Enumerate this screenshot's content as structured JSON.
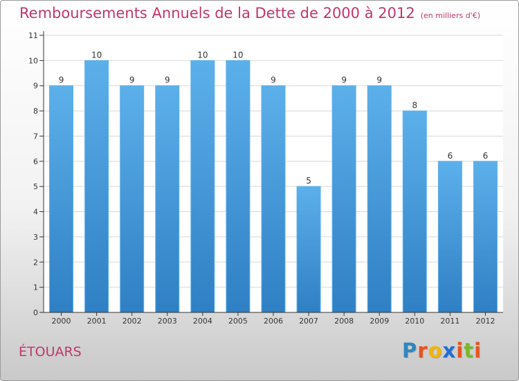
{
  "header": {
    "title": "Remboursements Annuels de la Dette de 2000 à 2012",
    "subtitle": "(en milliers d'€)"
  },
  "footer": {
    "commune": "ÉTOUARS",
    "brand_letters": [
      "P",
      "r",
      "o",
      "x",
      "i",
      "t",
      "i"
    ],
    "brand_colors": [
      "#2e86c1",
      "#e8531d",
      "#f4b400",
      "#1f6fd6",
      "#e8531d",
      "#78b928",
      "#e8531d"
    ]
  },
  "colors": {
    "bar": "#4a9fe0",
    "bar_light": "#5cb0ea",
    "bar_dark": "#2f7fc4",
    "grid": "#d8d8d8",
    "axis": "#333333",
    "text": "#333333"
  },
  "chart_data": {
    "type": "bar",
    "categories": [
      "2000",
      "2001",
      "2002",
      "2003",
      "2004",
      "2005",
      "2006",
      "2007",
      "2008",
      "2009",
      "2010",
      "2011",
      "2012"
    ],
    "values": [
      9,
      10,
      9,
      9,
      10,
      10,
      9,
      5,
      9,
      9,
      8,
      6,
      6
    ],
    "data_labels": [
      "9",
      "10",
      "9",
      "9",
      "10",
      "10",
      "9",
      "5",
      "9",
      "9",
      "8",
      "6",
      "6"
    ],
    "yticks": [
      "0",
      "1",
      "2",
      "3",
      "4",
      "5",
      "6",
      "7",
      "8",
      "9",
      "10",
      "11"
    ],
    "ylim": [
      0,
      11
    ],
    "title": "Remboursements Annuels de la Dette de 2000 à 2012",
    "xlabel": "",
    "ylabel": "",
    "grid": true
  }
}
